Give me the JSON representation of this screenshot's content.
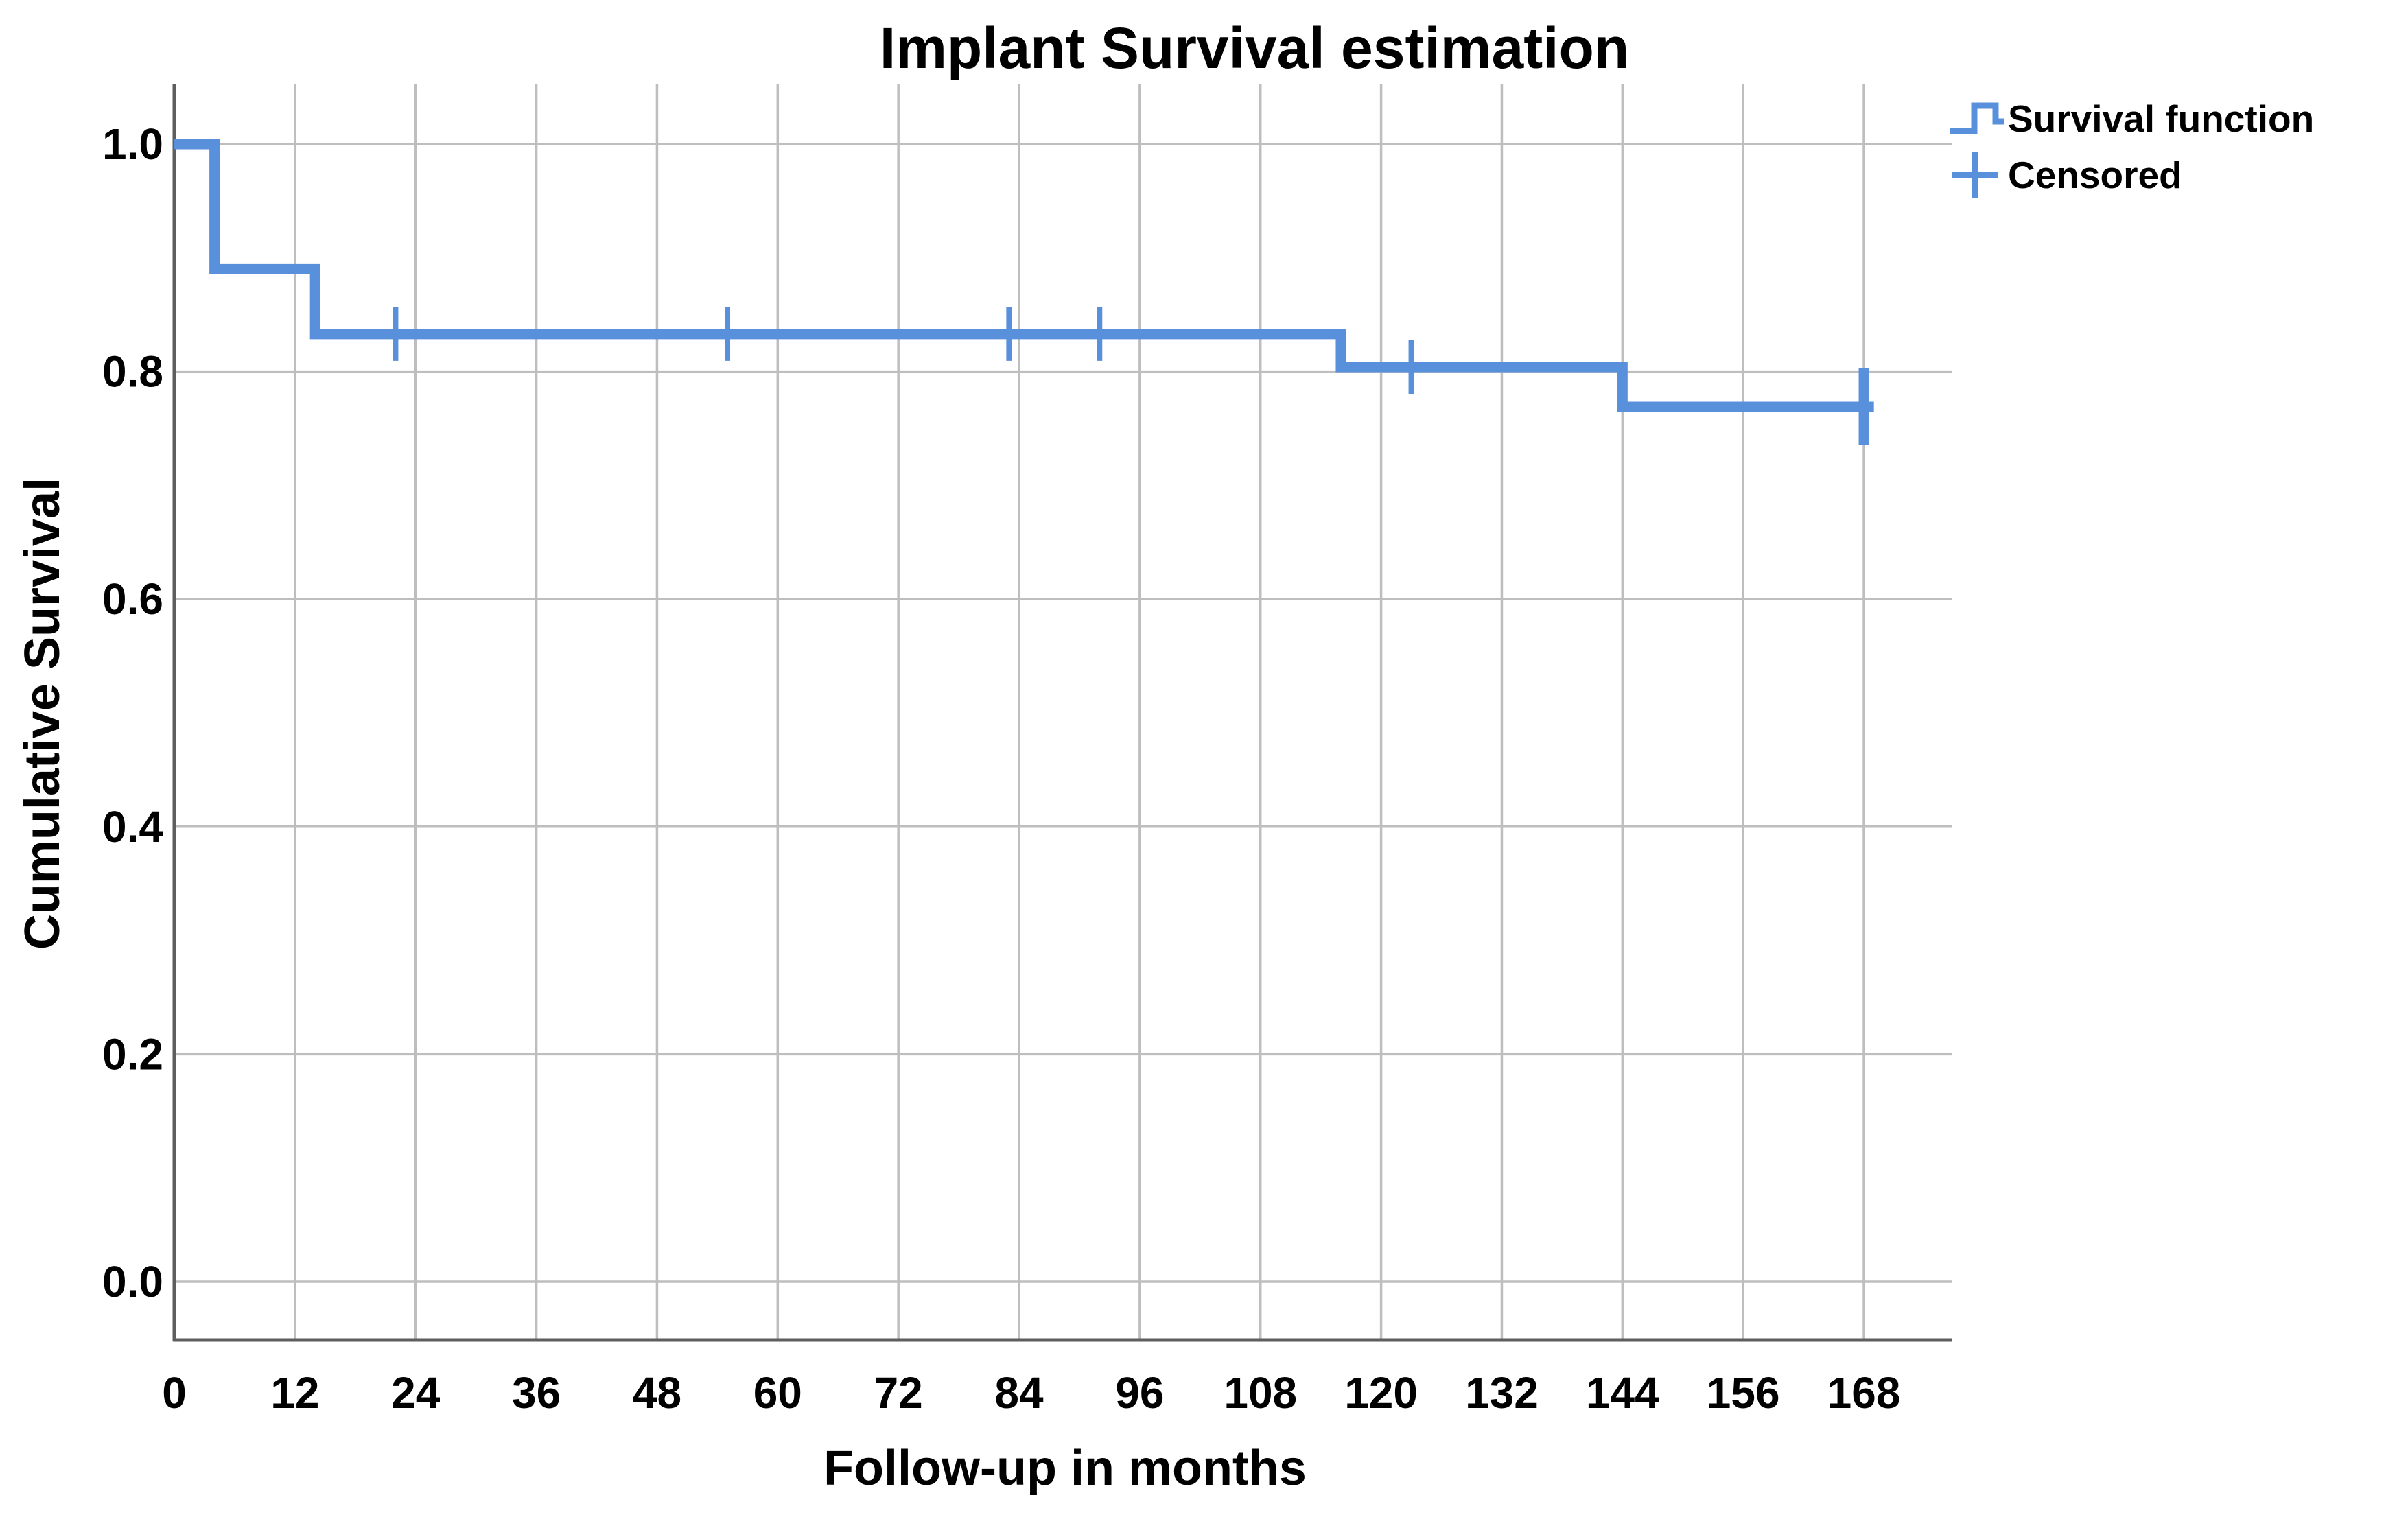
{
  "page": {
    "background": "#ffffff"
  },
  "chart_data": {
    "type": "line",
    "subtype": "kaplan-meier-step",
    "title": "Implant Survival estimation",
    "xlabel": "Follow-up in months",
    "ylabel": "Cumulative Survival",
    "x_ticks": [
      0,
      12,
      24,
      36,
      48,
      60,
      72,
      84,
      96,
      108,
      120,
      132,
      144,
      156,
      168
    ],
    "y_ticks": [
      "0.0",
      "0.2",
      "0.4",
      "0.6",
      "0.8",
      "1.0"
    ],
    "xlim": [
      0,
      177
    ],
    "ylim": [
      -0.05,
      1.05
    ],
    "grid": true,
    "legend_position": "top-right",
    "series": [
      {
        "name": "Survival function",
        "steps": [
          {
            "time": 0,
            "survival": 1.0
          },
          {
            "time": 4,
            "survival": 0.89
          },
          {
            "time": 14,
            "survival": 0.833
          },
          {
            "time": 116,
            "survival": 0.804
          },
          {
            "time": 144,
            "survival": 0.769
          }
        ],
        "end_time": 169
      }
    ],
    "censored_points": [
      {
        "time": 22,
        "survival": 0.833
      },
      {
        "time": 55,
        "survival": 0.833
      },
      {
        "time": 83,
        "survival": 0.833
      },
      {
        "time": 92,
        "survival": 0.833
      },
      {
        "time": 123,
        "survival": 0.804
      },
      {
        "time": 168,
        "survival": 0.769,
        "emphasis": true
      }
    ],
    "legend_items": [
      {
        "label": "Survival function",
        "symbol": "step-line"
      },
      {
        "label": "Censored",
        "symbol": "plus"
      }
    ],
    "colors": {
      "line": "#5890DB",
      "grid": "#BEBEBE",
      "axis": "#5E5E5E",
      "text": "#000000"
    }
  }
}
